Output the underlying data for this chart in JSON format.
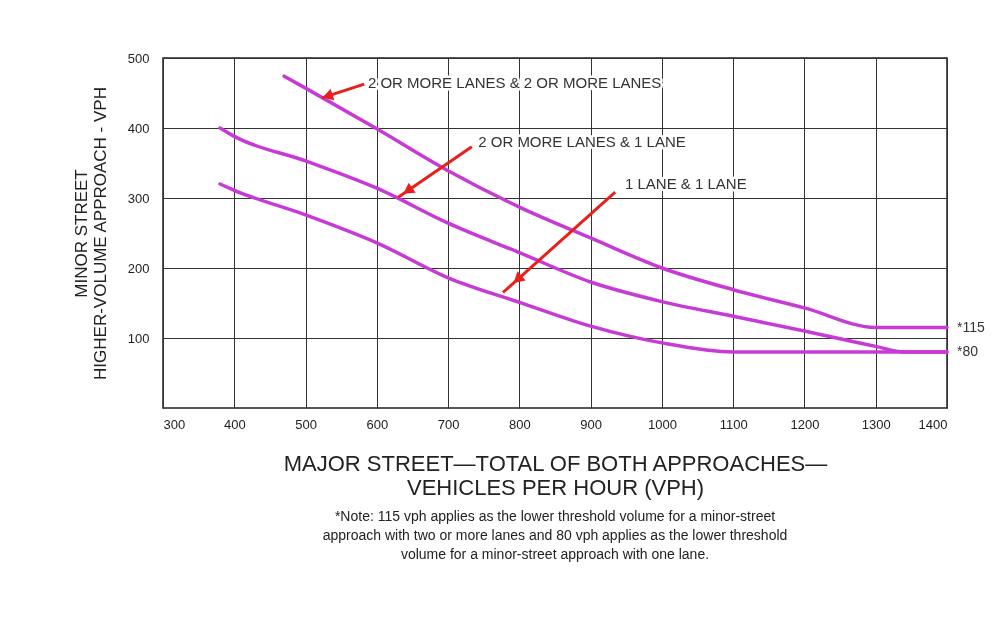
{
  "chart_data": {
    "type": "line",
    "xlabel": "MAJOR STREET—TOTAL OF BOTH APPROACHES—\nVEHICLES PER HOUR (VPH)",
    "ylabel": "MINOR STREET\nHIGHER-VOLUME APPROACH - VPH",
    "xlim": [
      300,
      1400
    ],
    "xticks": [
      300,
      400,
      500,
      600,
      700,
      800,
      900,
      {
        "value": 1000,
        "label": "1000"
      },
      {
        "value": 1100,
        "label": "1100"
      },
      {
        "value": 1200,
        "label": "1200"
      },
      {
        "value": 1300,
        "label": "1300"
      },
      {
        "value": 1400,
        "label": "1400"
      }
    ],
    "ylim": [
      0,
      500
    ],
    "yticks": [
      100,
      200,
      300,
      400,
      500
    ],
    "grid": true,
    "line_style": "solid",
    "marker": "none",
    "series": [
      {
        "color": "#c63bd6",
        "x": [
          470,
          500,
          600,
          700,
          800,
          900,
          1000,
          1100,
          1200,
          1300,
          1400
        ],
        "values": [
          474,
          457,
          399,
          339,
          287,
          243,
          200,
          169,
          143,
          115,
          115
        ]
      },
      {
        "color": "#c63bd6",
        "x": [
          380,
          400,
          500,
          600,
          700,
          800,
          900,
          1000,
          1100,
          1200,
          1300,
          1340,
          1400
        ],
        "values": [
          400,
          388,
          353,
          314,
          264,
          222,
          180,
          152,
          131,
          110,
          88,
          80,
          80
        ]
      },
      {
        "color": "#c63bd6",
        "x": [
          380,
          400,
          500,
          600,
          700,
          800,
          900,
          1000,
          1100,
          1200,
          1300,
          1400
        ],
        "values": [
          320,
          311,
          276,
          236,
          186,
          151,
          117,
          93,
          80,
          80,
          80,
          80
        ]
      }
    ],
    "annotations": [
      {
        "text": "2 OR MORE LANES & 2 OR MORE LANES",
        "x": 523,
        "y": 443
      },
      {
        "text": "2 OR MORE LANES & 1 LANE",
        "x": 630,
        "y": 301
      },
      {
        "text": "1 LANE & 1 LANE",
        "x": 777,
        "y": 165
      },
      {
        "text": "*115",
        "x": 1400,
        "y": 115
      },
      {
        "text": "*80",
        "x": 1400,
        "y": 80
      },
      "*Note: 115 vph applies as the lower threshold volume for a minor-street approach with two or more lanes and 80 vph applies as the lower threshold volume for a minor-street approach with one lane."
    ]
  }
}
